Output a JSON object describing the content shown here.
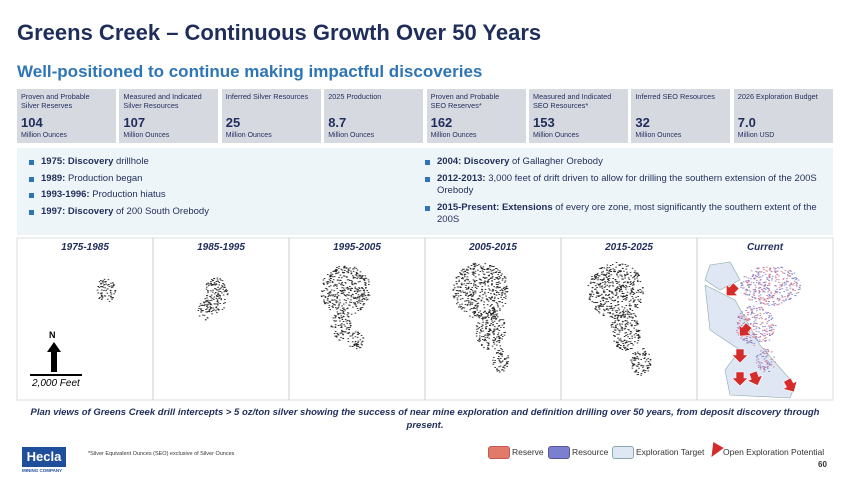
{
  "title": "Greens Creek – Continuous Growth Over 50 Years",
  "subtitle": "Well-positioned to continue making impactful discoveries",
  "stats": [
    {
      "label": [
        "Proven and Probable",
        "Silver Reserves"
      ],
      "value": "104",
      "unit": "Million Ounces"
    },
    {
      "label": [
        "Measured and Indicated",
        "Silver Resources"
      ],
      "value": "107",
      "unit": "Million Ounces"
    },
    {
      "label": [
        "Inferred Silver Resources"
      ],
      "value": "25",
      "unit": "Million Ounces"
    },
    {
      "label": [
        "2025 Production"
      ],
      "value": "8.7",
      "unit": "Million Ounces"
    },
    {
      "label": [
        "Proven and Probable",
        "SEO Reserves*"
      ],
      "value": "162",
      "unit": "Million Ounces"
    },
    {
      "label": [
        "Measured and Indicated",
        "SEO Resources*"
      ],
      "value": "153",
      "unit": "Million Ounces"
    },
    {
      "label": [
        "Inferred SEO Resources"
      ],
      "value": "32",
      "unit": "Million Ounces"
    },
    {
      "label": [
        "2026 Exploration Budget"
      ],
      "value": "7.0",
      "unit": "Million USD"
    }
  ],
  "bullets_left": [
    {
      "strong": "1975: Discovery",
      "text": " drillhole"
    },
    {
      "strong": "1989:",
      "text": "  Production began"
    },
    {
      "strong": "1993-1996:",
      "text": " Production hiatus"
    },
    {
      "strong": "1997: Discovery",
      "text": " of 200 South Orebody"
    }
  ],
  "bullets_right": [
    {
      "strong": "2004: Discovery",
      "text": " of Gallagher Orebody"
    },
    {
      "strong": "2012-2013:",
      "text": " 3,000 feet of drift driven to allow for drilling the southern extension of the 200S Orebody"
    },
    {
      "strong": "2015-Present: Extensions",
      "text": " of every ore zone, most significantly the southern extent of the 200S"
    }
  ],
  "panels": [
    "1975-1985",
    "1985-1995",
    "1995-2005",
    "2005-2015",
    "2015-2025",
    "Current"
  ],
  "north": "N",
  "scale": "2,000 Feet",
  "caption": "Plan views of Greens Creek drill intercepts > 5 oz/ton silver showing the success of near mine exploration and definition drilling over 50 years, from deposit discovery through present.",
  "footnote": "*Silver Equivalent Ounces (SEO) exclusive of Silver Ounces",
  "logo": {
    "name": "Hecla",
    "sub": "MINING COMPANY"
  },
  "legend": [
    "Reserve",
    "Resource",
    "Exploration Target",
    "Open Exploration Potential"
  ],
  "page": "60"
}
